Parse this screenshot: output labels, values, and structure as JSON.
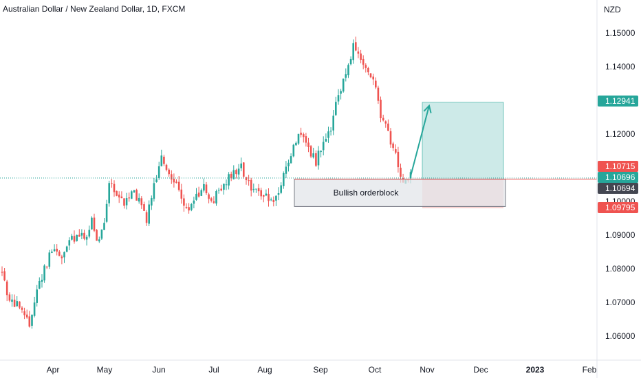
{
  "header": {
    "title": "Australian Dollar / New Zealand Dollar, 1D, FXCM"
  },
  "price_axis": {
    "currency": "NZD"
  },
  "annotations": {
    "orderblock_label": "Bullish orderblock"
  },
  "colors": {
    "up": "#26a69a",
    "down": "#ef5350",
    "target_zone": "#b2dfdb",
    "stop_zone": "#f7c5c4",
    "orderblock": "#e3e5ea",
    "arrow": "#26a69a"
  },
  "chart_data": {
    "type": "candlestick",
    "title": "Australian Dollar / New Zealand Dollar, 1D, FXCM",
    "ylabel": "NZD",
    "ylim": [
      1.054,
      1.155
    ],
    "y_ticks": [
      "1.06000",
      "1.07000",
      "1.08000",
      "1.09000",
      "1.10000",
      "1.11000",
      "1.12000",
      "1.13000",
      "1.14000",
      "1.15000"
    ],
    "x_ticks": [
      {
        "label": "Apr",
        "bold": false
      },
      {
        "label": "May",
        "bold": false
      },
      {
        "label": "Jun",
        "bold": false
      },
      {
        "label": "Jul",
        "bold": false
      },
      {
        "label": "Aug",
        "bold": false
      },
      {
        "label": "Sep",
        "bold": false
      },
      {
        "label": "Oct",
        "bold": false
      },
      {
        "label": "Nov",
        "bold": false
      },
      {
        "label": "Dec",
        "bold": false
      },
      {
        "label": "2023",
        "bold": true
      },
      {
        "label": "Feb",
        "bold": false
      }
    ],
    "price_markers": [
      {
        "label": "1.12941",
        "value": 1.12941,
        "color": "#26a69a"
      },
      {
        "label": "1.10715",
        "value": 1.10715,
        "color": "#ef5350"
      },
      {
        "label": "1.10696",
        "value": 1.10696,
        "color": "#26a69a"
      },
      {
        "label": "1.10694",
        "value": 1.10694,
        "color": "#434651"
      },
      {
        "label": "1.09795",
        "value": 1.09795,
        "color": "#ef5350"
      }
    ],
    "last_price": 1.10694,
    "orderblock": {
      "label": "Bullish orderblock",
      "top": 1.1066,
      "bottom": 1.0985,
      "start": "Aug 18",
      "end": "Dec 13"
    },
    "position": {
      "type": "long",
      "entry": 1.1066,
      "target": 1.12941,
      "stop": 1.09795,
      "start": "Oct 26",
      "end": "Dec 13"
    },
    "series_path": [
      [
        0,
        1.079
      ],
      [
        3,
        1.07
      ],
      [
        6,
        1.069
      ],
      [
        9,
        1.066
      ],
      [
        11,
        1.063
      ],
      [
        13,
        1.071
      ],
      [
        15,
        1.076
      ],
      [
        18,
        1.082
      ],
      [
        21,
        1.086
      ],
      [
        24,
        1.083
      ],
      [
        27,
        1.088
      ],
      [
        30,
        1.09
      ],
      [
        33,
        1.089
      ],
      [
        36,
        1.094
      ],
      [
        38,
        1.087
      ],
      [
        41,
        1.095
      ],
      [
        43,
        1.106
      ],
      [
        46,
        1.102
      ],
      [
        49,
        1.099
      ],
      [
        52,
        1.104
      ],
      [
        55,
        1.1
      ],
      [
        58,
        1.095
      ],
      [
        61,
        1.105
      ],
      [
        64,
        1.113
      ],
      [
        66,
        1.109
      ],
      [
        69,
        1.107
      ],
      [
        72,
        1.101
      ],
      [
        75,
        1.098
      ],
      [
        78,
        1.101
      ],
      [
        81,
        1.105
      ],
      [
        84,
        1.099
      ],
      [
        87,
        1.103
      ],
      [
        90,
        1.106
      ],
      [
        93,
        1.108
      ],
      [
        96,
        1.11
      ],
      [
        99,
        1.105
      ],
      [
        102,
        1.104
      ],
      [
        105,
        1.102
      ],
      [
        108,
        1.1
      ],
      [
        111,
        1.103
      ],
      [
        114,
        1.109
      ],
      [
        117,
        1.117
      ],
      [
        120,
        1.12
      ],
      [
        123,
        1.115
      ],
      [
        126,
        1.112
      ],
      [
        129,
        1.118
      ],
      [
        132,
        1.121
      ],
      [
        135,
        1.132
      ],
      [
        138,
        1.138
      ],
      [
        141,
        1.146
      ],
      [
        144,
        1.142
      ],
      [
        147,
        1.139
      ],
      [
        150,
        1.133
      ],
      [
        152,
        1.125
      ],
      [
        155,
        1.12
      ],
      [
        158,
        1.114
      ],
      [
        160,
        1.108
      ],
      [
        162,
        1.106
      ],
      [
        164,
        1.108
      ]
    ]
  }
}
